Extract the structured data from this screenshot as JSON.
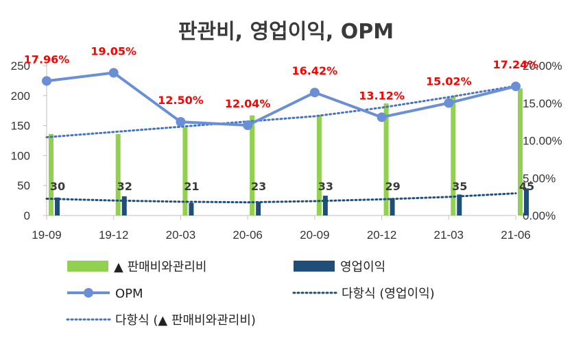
{
  "chart_data": {
    "type": "bar",
    "title": "판관비, 영업이익, OPM",
    "categories": [
      "19-09",
      "19-12",
      "20-03",
      "20-06",
      "20-09",
      "20-12",
      "21-03",
      "21-06"
    ],
    "y_left": {
      "min": 0,
      "max": 250,
      "ticks": [
        0,
        50,
        100,
        150,
        200,
        250
      ]
    },
    "y_right": {
      "min": 0,
      "max": 0.2,
      "ticks": [
        "0.00%",
        "5.00%",
        "10.00%",
        "15.00%",
        "20.00%"
      ]
    },
    "series": [
      {
        "name": "▲ 판매비와관리비",
        "type": "bar",
        "axis": "left",
        "color": "#92d050",
        "values": [
          136,
          136,
          147,
          167,
          168,
          187,
          200,
          212
        ]
      },
      {
        "name": "영업이익",
        "type": "bar",
        "axis": "left",
        "color": "#1f4e79",
        "values": [
          30,
          32,
          21,
          23,
          33,
          29,
          35,
          45
        ],
        "labels": [
          "30",
          "32",
          "21",
          "23",
          "33",
          "29",
          "35",
          "45"
        ]
      },
      {
        "name": "OPM",
        "type": "line",
        "axis": "right",
        "color": "#6a8fd6",
        "values": [
          0.1796,
          0.1905,
          0.125,
          0.1204,
          0.1642,
          0.1312,
          0.1502,
          0.1724
        ],
        "labels": [
          "17.96%",
          "19.05%",
          "12.50%",
          "12.04%",
          "16.42%",
          "13.12%",
          "15.02%",
          "17.24%"
        ]
      },
      {
        "name": "다항식 (영업이익)",
        "type": "trendline",
        "axis": "left",
        "color": "#1f4e79",
        "values": [
          28,
          25,
          23,
          22,
          24,
          27,
          31,
          37
        ]
      },
      {
        "name": "다항식 (▲ 판매비와관리비)",
        "type": "trendline",
        "axis": "right",
        "color": "#4472c4",
        "values": [
          0.1045,
          0.1115,
          0.1185,
          0.1255,
          0.1325,
          0.144,
          0.158,
          0.173
        ]
      }
    ],
    "legend": [
      {
        "label": "▲ 판매비와관리비",
        "symbol": "bar",
        "color": "#92d050"
      },
      {
        "label": "영업이익",
        "symbol": "bar",
        "color": "#1f4e79"
      },
      {
        "label": "OPM",
        "symbol": "line-marker",
        "color": "#6a8fd6"
      },
      {
        "label": "다항식 (영업이익)",
        "symbol": "dotted",
        "color": "#1f4e79"
      },
      {
        "label": "다항식 (▲ 판매비와관리비)",
        "symbol": "dotted",
        "color": "#4472c4"
      }
    ],
    "legend_position": "bottom"
  }
}
